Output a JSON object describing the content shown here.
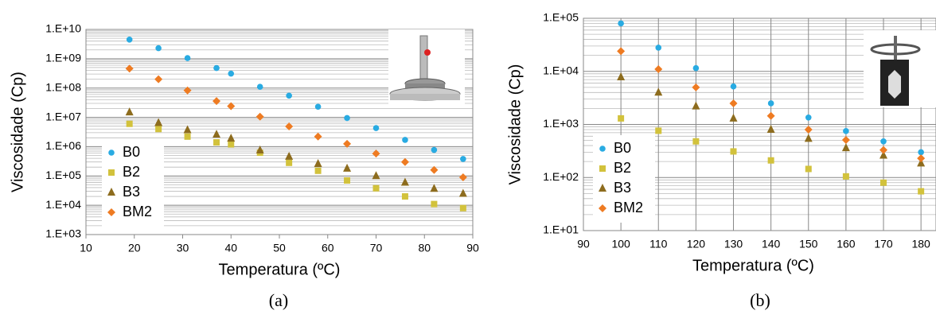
{
  "chart_data": [
    {
      "type": "scatter",
      "caption": "(a)",
      "x_label": "Temperatura (ºC)",
      "y_label": "Viscosidade (Cp)",
      "log_y": true,
      "grid": "horizontal",
      "minor_grid": true,
      "legend": "lower left",
      "xlim": [
        10,
        90
      ],
      "xticks": [
        10,
        20,
        30,
        40,
        50,
        60,
        70,
        80,
        90
      ],
      "ylim": [
        1000,
        10000000000
      ],
      "yticks": [
        {
          "value": 1000,
          "label": "1.E+03"
        },
        {
          "value": 10000,
          "label": "1.E+04"
        },
        {
          "value": 100000,
          "label": "1.E+05"
        },
        {
          "value": 1000000,
          "label": "1.E+06"
        },
        {
          "value": 10000000,
          "label": "1.E+07"
        },
        {
          "value": 100000000,
          "label": "1.E+08"
        },
        {
          "value": 1000000000,
          "label": "1.E+09"
        },
        {
          "value": 10000000000,
          "label": "1.E+10"
        }
      ],
      "x": [
        19,
        25,
        31,
        37,
        40,
        46,
        52,
        58,
        64,
        70,
        76,
        82,
        88
      ],
      "series": [
        {
          "name": "B0",
          "color": "#29abe2",
          "marker": "circle",
          "values": [
            4500000000,
            2300000000,
            1050000000,
            480000000,
            310000000,
            110000000,
            55000000,
            23000000,
            9500000,
            4300000,
            1700000,
            770000,
            380000
          ]
        },
        {
          "name": "B2",
          "color": "#d2c23c",
          "marker": "square",
          "values": [
            6000000,
            4000000,
            2200000,
            1400000,
            1200000,
            620000,
            280000,
            150000,
            70000,
            38000,
            20000,
            11000,
            8000
          ]
        },
        {
          "name": "B3",
          "color": "#8d6c1e",
          "marker": "triangle",
          "values": [
            15000000,
            6500000,
            3700000,
            2600000,
            1900000,
            750000,
            460000,
            260000,
            180000,
            100000,
            60000,
            37000,
            25000
          ]
        },
        {
          "name": "BM2",
          "color": "#ee7b22",
          "marker": "diamond",
          "values": [
            460000000,
            200000000,
            83000000,
            36000000,
            24000000,
            10500000,
            4900000,
            2200000,
            1250000,
            580000,
            300000,
            160000,
            90000
          ]
        }
      ]
    },
    {
      "type": "scatter",
      "caption": "(b)",
      "x_label": "Temperatura (ºC)",
      "y_label": "Viscosidade (Cp)",
      "log_y": true,
      "grid": "both",
      "minor_grid": true,
      "legend": "lower left",
      "xlim": [
        90,
        184
      ],
      "xticks": [
        90,
        100,
        110,
        120,
        130,
        140,
        150,
        160,
        170,
        180
      ],
      "ylim": [
        10,
        100000
      ],
      "yticks": [
        {
          "value": 10,
          "label": "1.E+01"
        },
        {
          "value": 100,
          "label": "1.E+02"
        },
        {
          "value": 1000,
          "label": "1.E+03"
        },
        {
          "value": 10000,
          "label": "1.E+04"
        },
        {
          "value": 100000,
          "label": "1.E+05"
        }
      ],
      "x": [
        100,
        110,
        120,
        130,
        140,
        150,
        160,
        170,
        180
      ],
      "series": [
        {
          "name": "B0",
          "color": "#29abe2",
          "marker": "circle",
          "values": [
            80000,
            28000,
            11500,
            5200,
            2500,
            1350,
            750,
            480,
            300
          ]
        },
        {
          "name": "B2",
          "color": "#d2c23c",
          "marker": "square",
          "values": [
            1300,
            760,
            480,
            310,
            210,
            145,
            105,
            80,
            55
          ]
        },
        {
          "name": "B3",
          "color": "#8d6c1e",
          "marker": "triangle",
          "values": [
            7800,
            4000,
            2200,
            1300,
            800,
            540,
            360,
            260,
            185
          ]
        },
        {
          "name": "BM2",
          "color": "#ee7b22",
          "marker": "diamond",
          "values": [
            24000,
            11000,
            5000,
            2500,
            1450,
            800,
            510,
            330,
            230
          ]
        }
      ]
    }
  ]
}
